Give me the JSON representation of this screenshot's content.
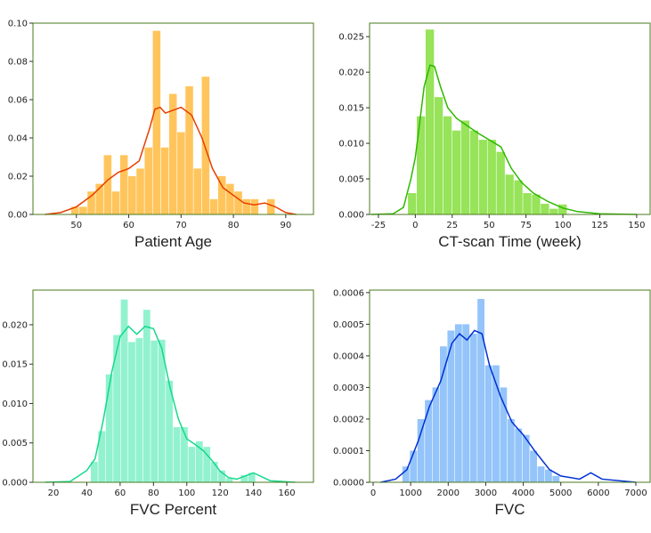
{
  "chart_data": [
    {
      "type": "histogram",
      "xlabel": "Patient Age",
      "color": "#ffc55c",
      "bins": [
        49,
        50.56,
        52.12,
        53.68,
        55.24,
        56.8,
        58.36,
        59.92,
        61.48,
        63.04,
        64.6,
        66.16,
        67.72,
        69.28,
        70.84,
        72.4,
        73.96,
        75.52,
        77.08,
        78.64,
        80.2,
        81.76,
        83.32,
        84.88,
        86.44,
        88
      ],
      "values": [
        0.004,
        0.004,
        0.012,
        0.016,
        0.031,
        0.012,
        0.031,
        0.02,
        0.024,
        0.035,
        0.096,
        0.035,
        0.063,
        0.043,
        0.067,
        0.024,
        0.072,
        0.008,
        0.02,
        0.016,
        0.012,
        0.008,
        0.008,
        0.0,
        0.008
      ],
      "kde": {
        "color": "#e83e00",
        "x": [
          44,
          47,
          50,
          53,
          56,
          58,
          60,
          62,
          64,
          65,
          66,
          67,
          68,
          70,
          72,
          74,
          76,
          78,
          80,
          82,
          84,
          86,
          88,
          90,
          92
        ],
        "values": [
          0.0,
          0.001,
          0.004,
          0.01,
          0.018,
          0.022,
          0.024,
          0.028,
          0.045,
          0.055,
          0.056,
          0.053,
          0.054,
          0.056,
          0.052,
          0.04,
          0.024,
          0.014,
          0.01,
          0.006,
          0.005,
          0.006,
          0.004,
          0.001,
          0.0
        ]
      },
      "xlim": [
        41.7,
        95.3
      ],
      "xticks": [
        50,
        60,
        70,
        80,
        90
      ],
      "ylim": [
        0,
        0.1
      ],
      "yticks": [
        {
          "value": 0,
          "label": "0.00"
        },
        {
          "value": 0.02,
          "label": "0.02"
        },
        {
          "value": 0.04,
          "label": "0.04"
        },
        {
          "value": 0.06,
          "label": "0.06"
        },
        {
          "value": 0.08,
          "label": "0.08"
        },
        {
          "value": 0.1,
          "label": "0.10"
        }
      ]
    },
    {
      "type": "histogram",
      "xlabel": "CT-scan Time (week)",
      "color": "#97e35a",
      "bins": [
        -5,
        1,
        7,
        13,
        19,
        25,
        31,
        37,
        43,
        49,
        55,
        61,
        67,
        73,
        79,
        85,
        91,
        97,
        103
      ],
      "values": [
        0.003,
        0.0138,
        0.026,
        0.0165,
        0.0138,
        0.0118,
        0.0132,
        0.0118,
        0.0105,
        0.0105,
        0.0088,
        0.0056,
        0.0048,
        0.003,
        0.0028,
        0.0015,
        0.0008,
        0.0014
      ],
      "kde": {
        "color": "#2db800",
        "x": [
          -30,
          -15,
          -8,
          -3,
          0,
          3,
          6,
          10,
          13,
          17,
          22,
          28,
          35,
          42,
          50,
          58,
          65,
          72,
          80,
          90,
          100,
          110,
          125,
          150
        ],
        "values": [
          0,
          0.0001,
          0.001,
          0.005,
          0.008,
          0.013,
          0.018,
          0.021,
          0.0208,
          0.018,
          0.015,
          0.0135,
          0.0125,
          0.0115,
          0.0105,
          0.0095,
          0.0065,
          0.0045,
          0.003,
          0.0018,
          0.0009,
          0.0004,
          0.0001,
          0
        ]
      },
      "xlim": [
        -31,
        159.1
      ],
      "xticks": [
        -25,
        0,
        25,
        50,
        75,
        100,
        125,
        150
      ],
      "ylim": [
        0,
        0.0269
      ],
      "yticks": [
        {
          "value": 0,
          "label": "0.000"
        },
        {
          "value": 0.005,
          "label": "0.005"
        },
        {
          "value": 0.01,
          "label": "0.010"
        },
        {
          "value": 0.015,
          "label": "0.015"
        },
        {
          "value": 0.02,
          "label": "0.020"
        },
        {
          "value": 0.025,
          "label": "0.025"
        }
      ]
    },
    {
      "type": "histogram",
      "xlabel": "FVC Percent",
      "color": "#92f2cf",
      "bins": [
        42.4,
        46.9,
        51.4,
        55.9,
        60.4,
        64.9,
        69.4,
        73.9,
        78.4,
        82.9,
        87.4,
        91.9,
        96.4,
        100.9,
        105.4,
        109.9,
        114.4,
        118.9,
        123.4,
        127.9,
        132.4,
        136.9,
        141.4
      ],
      "values": [
        0.0026,
        0.0065,
        0.0137,
        0.0187,
        0.0232,
        0.0178,
        0.0183,
        0.0219,
        0.018,
        0.0181,
        0.0129,
        0.007,
        0.007,
        0.0045,
        0.0052,
        0.0045,
        0.0026,
        0.0015,
        0.0005,
        0,
        0.0009,
        0.0012
      ],
      "kde": {
        "color": "#16d98c",
        "x": [
          15,
          30,
          40,
          45,
          50,
          55,
          60,
          65,
          70,
          75,
          80,
          85,
          90,
          95,
          100,
          105,
          110,
          115,
          120,
          125,
          130,
          135,
          140,
          145,
          150,
          165
        ],
        "values": [
          0,
          0.0001,
          0.0015,
          0.003,
          0.008,
          0.014,
          0.0185,
          0.0198,
          0.0188,
          0.0198,
          0.0195,
          0.017,
          0.012,
          0.008,
          0.0055,
          0.0048,
          0.004,
          0.0028,
          0.0014,
          0.0006,
          0.0004,
          0.0008,
          0.0012,
          0.0007,
          0.0002,
          0
        ]
      },
      "xlim": [
        7.7,
        176
      ],
      "xticks": [
        20,
        40,
        60,
        80,
        100,
        120,
        140,
        160
      ],
      "ylim": [
        0,
        0.0244
      ],
      "yticks": [
        {
          "value": 0,
          "label": "0.000"
        },
        {
          "value": 0.005,
          "label": "0.005"
        },
        {
          "value": 0.01,
          "label": "0.010"
        },
        {
          "value": 0.015,
          "label": "0.015"
        },
        {
          "value": 0.02,
          "label": "0.020"
        }
      ]
    },
    {
      "type": "histogram",
      "xlabel": "FVC",
      "color": "#94c4fa",
      "bins": [
        780,
        980,
        1180,
        1380,
        1580,
        1780,
        1980,
        2180,
        2380,
        2580,
        2780,
        2980,
        3180,
        3380,
        3580,
        3780,
        3980,
        4180,
        4380,
        4580,
        4780,
        4980
      ],
      "values": [
        5e-05,
        0.0001,
        0.0002,
        0.00026,
        0.0003,
        0.00043,
        0.00048,
        0.0005,
        0.0005,
        0.00047,
        0.00058,
        0.00037,
        0.00037,
        0.0003,
        0.0002,
        0.00017,
        0.00015,
        0.0001,
        5e-05,
        4e-05,
        2e-05
      ],
      "kde": {
        "color": "#0030d4",
        "x": [
          200,
          600,
          900,
          1200,
          1500,
          1800,
          2100,
          2300,
          2500,
          2700,
          2900,
          3100,
          3400,
          3700,
          4000,
          4300,
          4700,
          5000,
          5500,
          5800,
          6100,
          7000
        ],
        "values": [
          0,
          1e-05,
          4e-05,
          0.00013,
          0.00024,
          0.00032,
          0.00044,
          0.00047,
          0.00045,
          0.00048,
          0.00047,
          0.00037,
          0.00027,
          0.00019,
          0.00015,
          0.0001,
          4e-05,
          2e-05,
          1e-05,
          3e-05,
          1e-05,
          0
        ]
      },
      "xlim": [
        -95,
        7380
      ],
      "xticks": [
        0,
        1000,
        2000,
        3000,
        4000,
        5000,
        6000,
        7000
      ],
      "ylim": [
        0,
        0.000608
      ],
      "yticks": [
        {
          "value": 0,
          "label": "0.0000"
        },
        {
          "value": 0.0001,
          "label": "0.0001"
        },
        {
          "value": 0.0002,
          "label": "0.0002"
        },
        {
          "value": 0.0003,
          "label": "0.0003"
        },
        {
          "value": 0.0004,
          "label": "0.0004"
        },
        {
          "value": 0.0005,
          "label": "0.0005"
        },
        {
          "value": 0.0006,
          "label": "0.0006"
        }
      ]
    }
  ]
}
